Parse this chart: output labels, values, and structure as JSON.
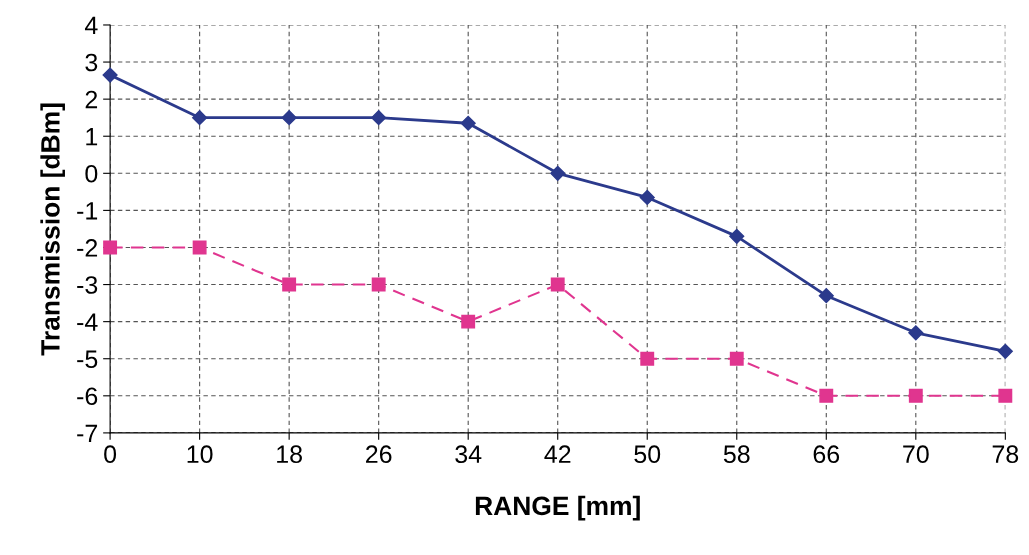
{
  "chart_data": {
    "type": "line",
    "xlabel": "RANGE [mm]",
    "ylabel": "Transmission [dBm]",
    "categories": [
      "0",
      "10",
      "18",
      "26",
      "34",
      "42",
      "50",
      "58",
      "66",
      "70",
      "78"
    ],
    "series": [
      {
        "color": "#2b3a8c",
        "marker": "diamond",
        "line_style": "solid",
        "values": [
          2.65,
          1.5,
          1.5,
          1.5,
          1.35,
          0,
          -0.65,
          -1.7,
          -3.3,
          -4.3,
          -4.8
        ]
      },
      {
        "color": "#e0358f",
        "marker": "square",
        "line_style": "dashed",
        "values": [
          -2,
          -2,
          -3,
          -3,
          -4,
          -3,
          -5,
          -5,
          -6,
          -6,
          -6
        ]
      }
    ],
    "ylim": [
      -7,
      4
    ],
    "yticks": [
      -7,
      -6,
      -5,
      -4,
      -3,
      -2,
      -1,
      0,
      1,
      2,
      3,
      4
    ],
    "grid": true,
    "legend": false
  }
}
